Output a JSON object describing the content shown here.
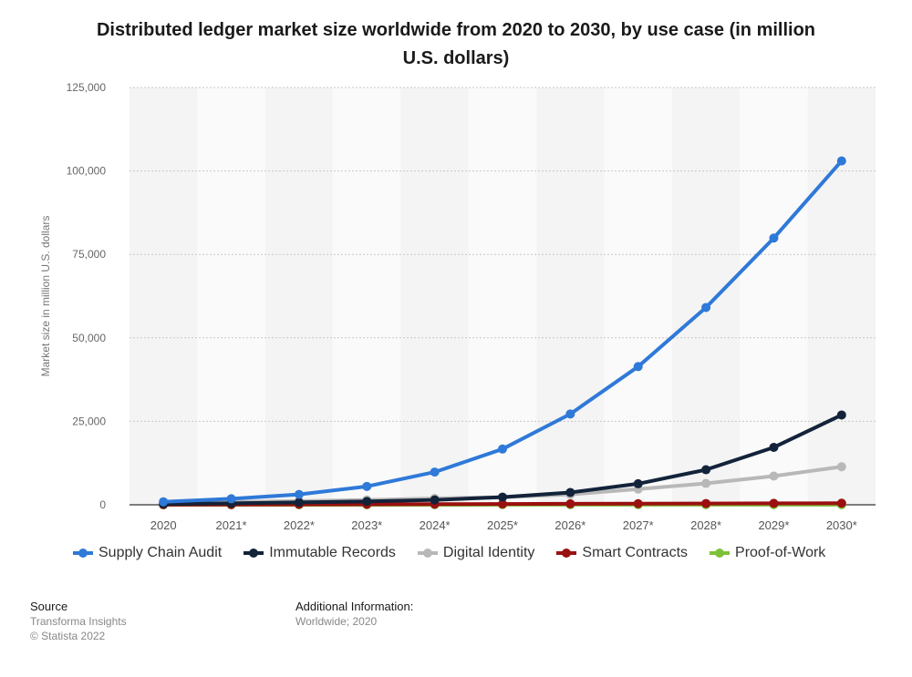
{
  "chart_data": {
    "type": "line",
    "title": "Distributed ledger market size worldwide from 2020 to 2030, by use case (in million U.S. dollars)",
    "xlabel": "",
    "ylabel": "Market size in million U.S. dollars",
    "categories": [
      "2020",
      "2021*",
      "2022*",
      "2023*",
      "2024*",
      "2025*",
      "2026*",
      "2027*",
      "2028*",
      "2029*",
      "2030*"
    ],
    "ylim": [
      0,
      125000
    ],
    "yticks": [
      0,
      25000,
      50000,
      75000,
      100000,
      125000
    ],
    "ytick_labels": [
      "0",
      "25,000",
      "50,000",
      "75,000",
      "100,000",
      "125,000"
    ],
    "grid": true,
    "legend_position": "bottom",
    "series": [
      {
        "name": "Supply Chain Audit",
        "color": "#2f79d8",
        "values": [
          900,
          1800,
          3100,
          5500,
          9800,
          16700,
          27200,
          41400,
          59100,
          79900,
          103000
        ]
      },
      {
        "name": "Immutable Records",
        "color": "#13233a",
        "values": [
          250,
          450,
          700,
          1000,
          1450,
          2300,
          3700,
          6300,
          10500,
          17200,
          26900
        ]
      },
      {
        "name": "Digital Identity",
        "color": "#b8b8b8",
        "values": [
          600,
          850,
          1100,
          1450,
          1900,
          2300,
          3100,
          4700,
          6400,
          8600,
          11400
        ]
      },
      {
        "name": "Smart Contracts",
        "color": "#9b1010",
        "values": [
          50,
          80,
          110,
          150,
          200,
          240,
          290,
          340,
          390,
          430,
          480
        ]
      },
      {
        "name": "Proof-of-Work",
        "color": "#7dc13a",
        "values": [
          5,
          8,
          10,
          12,
          15,
          18,
          20,
          22,
          25,
          28,
          30
        ]
      }
    ]
  },
  "footer": {
    "source_heading": "Source",
    "source_lines": [
      "Transforma Insights",
      "© Statista 2022"
    ],
    "info_heading": "Additional Information:",
    "info_text": "Worldwide; 2020"
  }
}
